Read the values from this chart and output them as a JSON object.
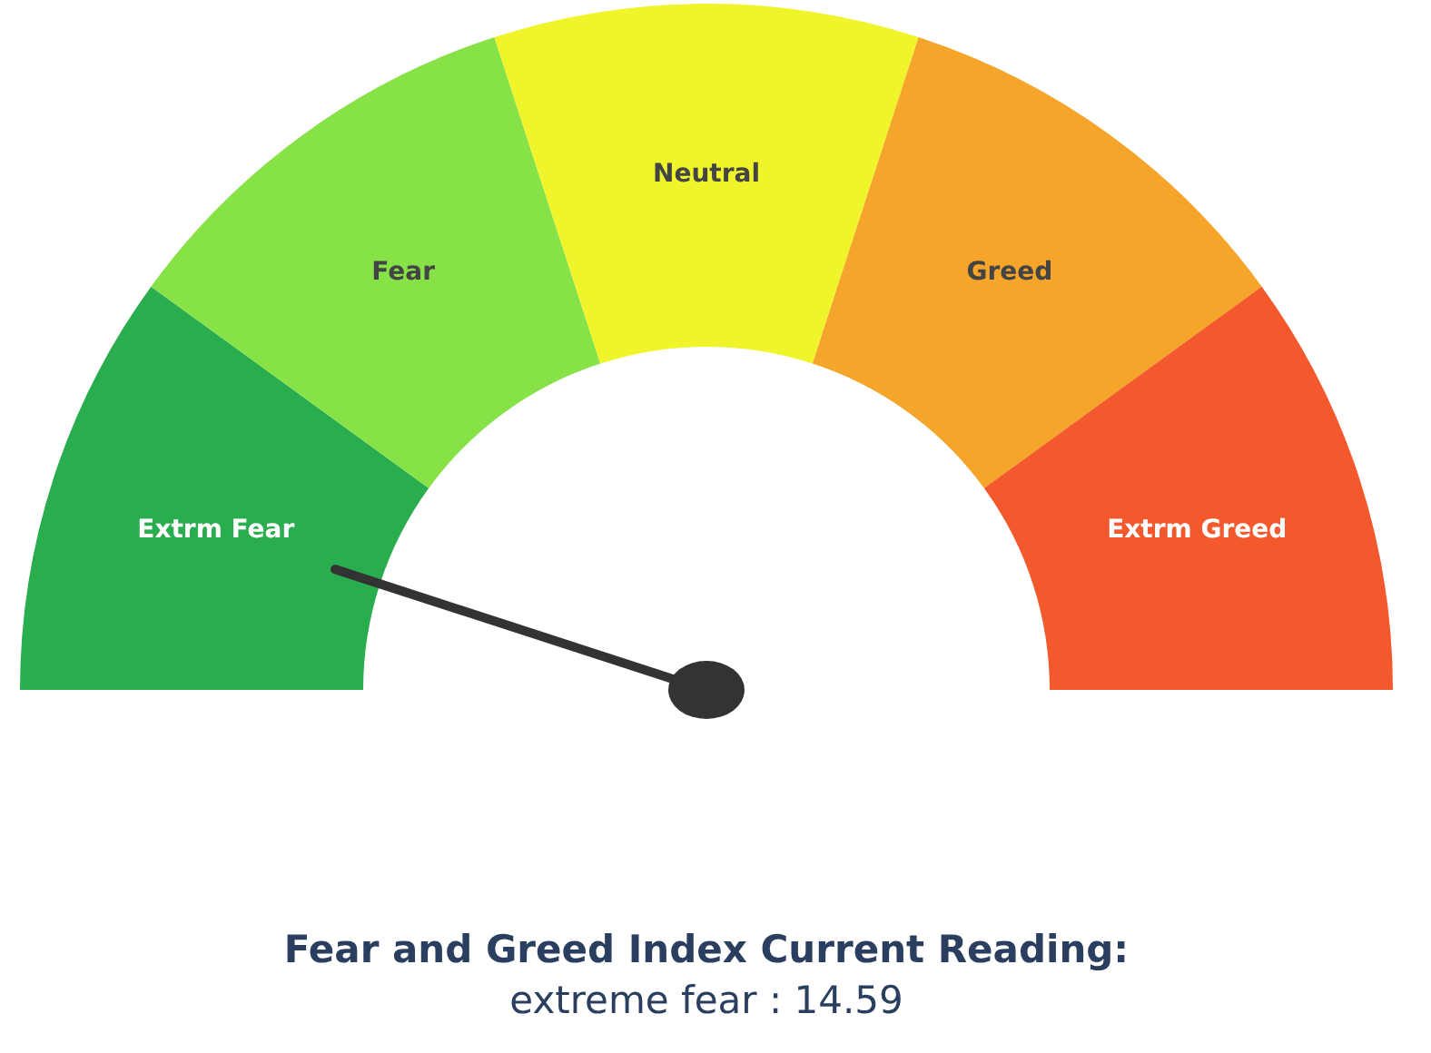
{
  "chart_data": {
    "type": "donut",
    "title": "Fear and Greed Index Current Reading:",
    "subtitle": "extreme fear : 14.59",
    "categories": [
      "Extrm Fear",
      "Fear",
      "Neutral",
      "Greed",
      "Extrm Greed"
    ],
    "values": [
      20,
      20,
      20,
      20,
      20
    ],
    "colors": [
      "#2aad4f",
      "#86e246",
      "#eff52a",
      "#f4a52a",
      "#f4592d"
    ],
    "needle": "Extrm Fear"
  }
}
